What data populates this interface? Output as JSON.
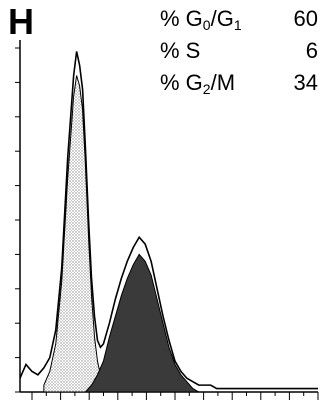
{
  "panel": {
    "label": "H"
  },
  "stats": [
    {
      "prefix": "% G",
      "sub1": "0",
      "mid": "/G",
      "sub2": "1",
      "tail": "",
      "value": "60"
    },
    {
      "prefix": "% S",
      "sub1": "",
      "mid": "",
      "sub2": "",
      "tail": "",
      "value": "6"
    },
    {
      "prefix": "% G",
      "sub1": "2",
      "mid": "/M",
      "sub2": "",
      "tail": "",
      "value": "34"
    }
  ],
  "chart_data": {
    "type": "area",
    "title": "",
    "xlabel": "",
    "ylabel": "",
    "xlim": [
      0,
      100
    ],
    "ylim": [
      0,
      100
    ],
    "grid": false,
    "legend": "none",
    "colors": {
      "g0g1_fill": "#d8d8d8",
      "g2m_fill": "#3a3a3a",
      "outline": "#000000"
    },
    "series": [
      {
        "name": "",
        "role": "total",
        "x": [
          0,
          2,
          4,
          6,
          8,
          10,
          12,
          14,
          16,
          18,
          19,
          20,
          21,
          22,
          23,
          24,
          25,
          26,
          27,
          28,
          30,
          32,
          34,
          36,
          38,
          40,
          42,
          44,
          46,
          48,
          50,
          52,
          54,
          56,
          58,
          60,
          62,
          64,
          66,
          68,
          70,
          72,
          74,
          76,
          78,
          80,
          84,
          88,
          92,
          96,
          100
        ],
        "y": [
          4,
          8,
          6,
          5,
          7,
          10,
          18,
          36,
          68,
          92,
          99,
          95,
          88,
          70,
          50,
          33,
          22,
          15,
          13,
          14,
          20,
          27,
          33,
          38,
          42,
          45,
          43,
          38,
          30,
          22,
          15,
          9,
          6,
          4,
          3,
          2,
          2,
          2,
          1,
          1,
          1,
          1,
          1,
          1,
          1,
          1,
          1,
          1,
          1,
          1,
          1
        ]
      },
      {
        "name": "",
        "role": "G0/G1",
        "x": [
          8,
          10,
          12,
          14,
          16,
          18,
          19,
          20,
          21,
          22,
          23,
          24,
          25,
          26,
          27,
          28,
          29,
          30
        ],
        "y": [
          2,
          6,
          14,
          32,
          62,
          86,
          92,
          89,
          82,
          65,
          45,
          28,
          16,
          9,
          5,
          3,
          1,
          0
        ]
      },
      {
        "name": "",
        "role": "G2/M",
        "x": [
          22,
          24,
          26,
          28,
          30,
          32,
          34,
          36,
          38,
          40,
          42,
          44,
          46,
          48,
          50,
          52,
          54,
          56,
          58,
          60
        ],
        "y": [
          0,
          2,
          5,
          9,
          16,
          22,
          28,
          33,
          37,
          40,
          38,
          34,
          27,
          20,
          13,
          8,
          5,
          3,
          1,
          0
        ]
      }
    ]
  }
}
